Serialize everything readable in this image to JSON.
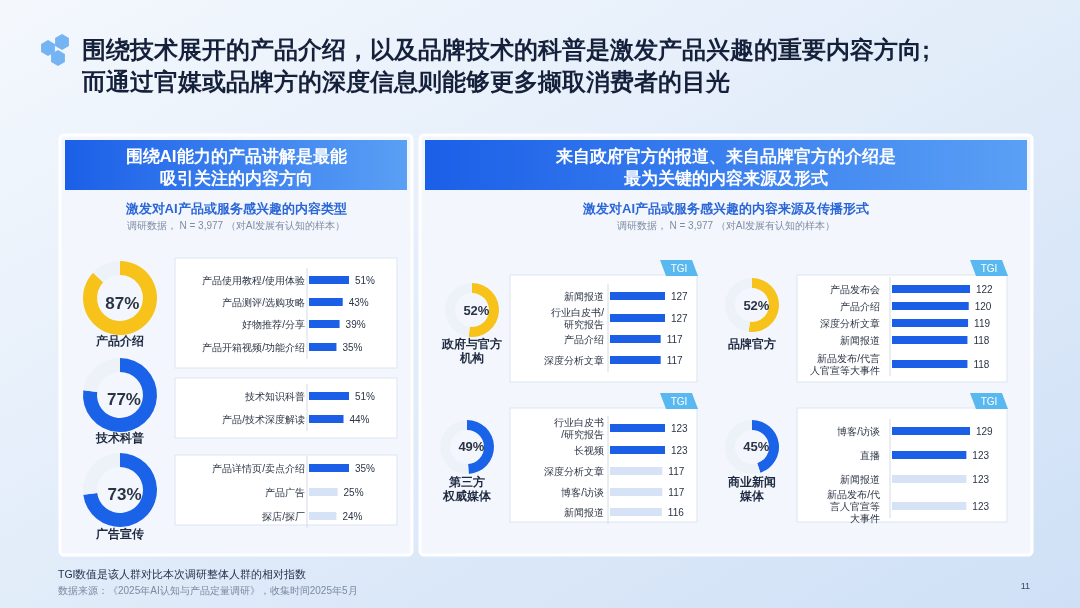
{
  "chart_data": [
    {
      "type": "other",
      "title": "围绕技术展开的产品介绍，以及品牌技术的科普是激发产品兴趣的重要内容方向;而通过官媒或品牌方的深度信息则能够更多撷取消费者的目光",
      "annotations": [
        "TGI数值是该人群对比本次调研整体人群的相对指数",
        "数据来源：《2025年AI认知与产品定量调研》，收集时间2025年5月",
        "11"
      ]
    },
    {
      "type": "other",
      "title": "围绕AI能力的产品讲解是最能吸引关注的内容方向",
      "subtitle": "激发对AI产品或服务感兴趣的内容类型",
      "annotations": [
        "调研数据， N = 3,977 （对AI发展有认知的样本）"
      ]
    },
    {
      "type": "donut",
      "title": "产品介绍",
      "categories": [
        null,
        null
      ],
      "values": [
        87,
        13
      ],
      "colors": [
        "#f7c21a",
        "#edf2f9"
      ],
      "value_labels": [
        "87%",
        null
      ]
    },
    {
      "type": "bar",
      "orientation": "horizontal",
      "categories": [
        "产品使用教程/使用体验",
        "产品测评/选购攻略",
        "好物推荐/分享",
        "产品开箱视频/功能介绍"
      ],
      "values": [
        51,
        43,
        39,
        35
      ],
      "colors": [
        "#1a5fe6",
        "#1a5fe6",
        "#1a5fe6",
        "#1a5fe6"
      ],
      "value_labels": [
        "51%",
        "43%",
        "39%",
        "35%"
      ]
    },
    {
      "type": "donut",
      "title": "技术科普",
      "categories": [
        null,
        null
      ],
      "values": [
        77,
        23
      ],
      "colors": [
        "#1a62e8",
        "#edf2f9"
      ],
      "value_labels": [
        "77%",
        null
      ]
    },
    {
      "type": "bar",
      "orientation": "horizontal",
      "categories": [
        "技术知识科普",
        "产品/技术深度解读"
      ],
      "values": [
        51,
        44
      ],
      "colors": [
        "#1a5fe6",
        "#1a5fe6"
      ],
      "value_labels": [
        "51%",
        "44%"
      ]
    },
    {
      "type": "donut",
      "title": "广告宣传",
      "categories": [
        null,
        null
      ],
      "values": [
        73,
        27
      ],
      "colors": [
        "#1a62e8",
        "#edf2f9"
      ],
      "value_labels": [
        "73%",
        null
      ]
    },
    {
      "type": "bar",
      "orientation": "horizontal",
      "categories": [
        "产品详情页/卖点介绍",
        "产品广告",
        "探店/探厂"
      ],
      "values": [
        35,
        25,
        24
      ],
      "colors": [
        "#1a5fe6",
        "#d6e2f5",
        "#d6e2f5"
      ],
      "value_labels": [
        "35%",
        "25%",
        "24%"
      ]
    },
    {
      "type": "other",
      "title": "来自政府官方的报道、来自品牌官方的介绍是最为关键的内容来源及形式",
      "subtitle": "激发对AI产品或服务感兴趣的内容来源及传播形式",
      "annotations": [
        "调研数据， N = 3,977 （对AI发展有认知的样本）"
      ]
    },
    {
      "type": "donut",
      "title": "政府与官方机构",
      "categories": [
        null,
        null
      ],
      "values": [
        52,
        48
      ],
      "colors": [
        "#f7c21a",
        "#edf2f9"
      ],
      "value_labels": [
        "52%",
        null
      ]
    },
    {
      "type": "bar",
      "orientation": "horizontal",
      "categories": [
        "新闻报道",
        "行业白皮书/研究报告",
        "产品介绍",
        "深度分析文章"
      ],
      "values": [
        127,
        127,
        117,
        117
      ],
      "colors": [
        "#1a5fe6",
        "#1a5fe6",
        "#1a5fe6",
        "#1a5fe6"
      ],
      "data_labels": true,
      "annotations": [
        "TGI"
      ]
    },
    {
      "type": "donut",
      "title": "品牌官方",
      "categories": [
        null,
        null
      ],
      "values": [
        52,
        48
      ],
      "colors": [
        "#f7c21a",
        "#edf2f9"
      ],
      "value_labels": [
        "52%",
        null
      ]
    },
    {
      "type": "bar",
      "orientation": "horizontal",
      "categories": [
        "产品发布会",
        "产品介绍",
        "深度分析文章",
        "新闻报道",
        "新品发布/代言人官宣等大事件"
      ],
      "values": [
        122,
        120,
        119,
        118,
        118
      ],
      "colors": [
        "#1a5fe6",
        "#1a5fe6",
        "#1a5fe6",
        "#1a5fe6",
        "#1a5fe6"
      ],
      "data_labels": true,
      "annotations": [
        "TGI"
      ]
    },
    {
      "type": "donut",
      "title": "第三方权威媒体",
      "categories": [
        null,
        null
      ],
      "values": [
        49,
        51
      ],
      "colors": [
        "#1a62e8",
        "#edf2f9"
      ],
      "value_labels": [
        "49%",
        null
      ]
    },
    {
      "type": "bar",
      "orientation": "horizontal",
      "categories": [
        "行业白皮书/研究报告",
        "长视频",
        "深度分析文章",
        "博客/访谈",
        "新闻报道"
      ],
      "values": [
        123,
        123,
        117,
        117,
        116
      ],
      "colors": [
        "#1a5fe6",
        "#1a5fe6",
        "#d6e2f5",
        "#d6e2f5",
        "#d6e2f5"
      ],
      "data_labels": true,
      "annotations": [
        "TGI"
      ]
    },
    {
      "type": "donut",
      "title": "商业新闻媒体",
      "categories": [
        null,
        null
      ],
      "values": [
        45,
        55
      ],
      "colors": [
        "#1a62e8",
        "#edf2f9"
      ],
      "value_labels": [
        "45%",
        null
      ]
    },
    {
      "type": "bar",
      "orientation": "horizontal",
      "categories": [
        "博客/访谈",
        "直播",
        "新闻报道",
        "新品发布/代言人官宣等大事件"
      ],
      "values": [
        129,
        123,
        123,
        123
      ],
      "colors": [
        "#1a5fe6",
        "#1a5fe6",
        "#d6e2f5",
        "#d6e2f5"
      ],
      "data_labels": true,
      "annotations": [
        "TGI"
      ]
    }
  ]
}
